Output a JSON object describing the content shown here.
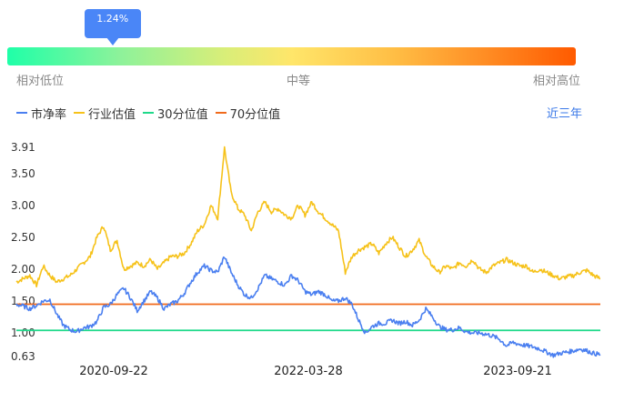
{
  "gauge": {
    "value_label": "1.24%",
    "value_percent": 1.24,
    "left_label": "相对低位",
    "mid_label": "中等",
    "right_label": "相对高位"
  },
  "period_label": "近三年",
  "colors": {
    "pb": "#4a7ff0",
    "industry": "#f6c21a",
    "p30": "#1fd98a",
    "p70": "#f06a1c"
  },
  "chart_data": {
    "type": "line",
    "y_ticks": [
      "3.91",
      "3.50",
      "3.00",
      "2.50",
      "2.00",
      "1.50",
      "1.00",
      "0.63"
    ],
    "ylim": [
      0.63,
      3.91
    ],
    "x_ticks": [
      "2020-09-22",
      "2022-03-28",
      "2023-09-21"
    ],
    "series": [
      {
        "name": "市净率",
        "values": [
          1.45,
          1.42,
          1.38,
          1.43,
          1.5,
          1.52,
          1.3,
          1.12,
          1.05,
          1.02,
          1.08,
          1.1,
          1.18,
          1.4,
          1.45,
          1.6,
          1.7,
          1.55,
          1.35,
          1.5,
          1.65,
          1.55,
          1.38,
          1.45,
          1.5,
          1.62,
          1.8,
          1.95,
          2.05,
          1.98,
          1.95,
          2.2,
          1.95,
          1.75,
          1.6,
          1.55,
          1.7,
          1.9,
          1.85,
          1.8,
          1.75,
          1.9,
          1.82,
          1.65,
          1.6,
          1.65,
          1.6,
          1.5,
          1.5,
          1.55,
          1.45,
          1.2,
          1.0,
          1.1,
          1.15,
          1.15,
          1.2,
          1.15,
          1.18,
          1.12,
          1.2,
          1.38,
          1.25,
          1.1,
          1.05,
          1.05,
          1.08,
          1.02,
          1.0,
          1.0,
          0.98,
          0.95,
          0.9,
          0.8,
          0.85,
          0.82,
          0.8,
          0.78,
          0.75,
          0.7,
          0.65,
          0.68,
          0.7,
          0.72,
          0.75,
          0.72,
          0.68,
          0.66
        ]
      },
      {
        "name": "行业估值",
        "values": [
          1.8,
          1.85,
          1.9,
          1.75,
          2.05,
          1.9,
          1.8,
          1.85,
          1.9,
          2.0,
          2.1,
          2.2,
          2.5,
          2.68,
          2.3,
          2.45,
          2.0,
          2.05,
          2.1,
          2.05,
          2.15,
          2.0,
          2.1,
          2.2,
          2.2,
          2.25,
          2.4,
          2.6,
          2.7,
          3.0,
          2.8,
          3.9,
          3.2,
          2.95,
          2.85,
          2.6,
          2.9,
          3.05,
          2.9,
          2.95,
          2.85,
          2.8,
          3.0,
          2.85,
          3.05,
          2.9,
          2.8,
          2.7,
          2.6,
          1.95,
          2.2,
          2.3,
          2.35,
          2.4,
          2.25,
          2.4,
          2.5,
          2.35,
          2.2,
          2.3,
          2.45,
          2.2,
          2.05,
          1.95,
          2.05,
          2.0,
          2.1,
          2.05,
          2.15,
          2.0,
          1.95,
          2.05,
          2.1,
          2.15,
          2.1,
          2.05,
          2.05,
          1.95,
          2.0,
          1.95,
          1.9,
          1.85,
          1.88,
          1.9,
          1.95,
          1.98,
          1.9,
          1.85
        ]
      },
      {
        "name": "30分位值",
        "values": [
          1.04
        ]
      },
      {
        "name": "70分位值",
        "values": [
          1.45
        ]
      }
    ]
  }
}
